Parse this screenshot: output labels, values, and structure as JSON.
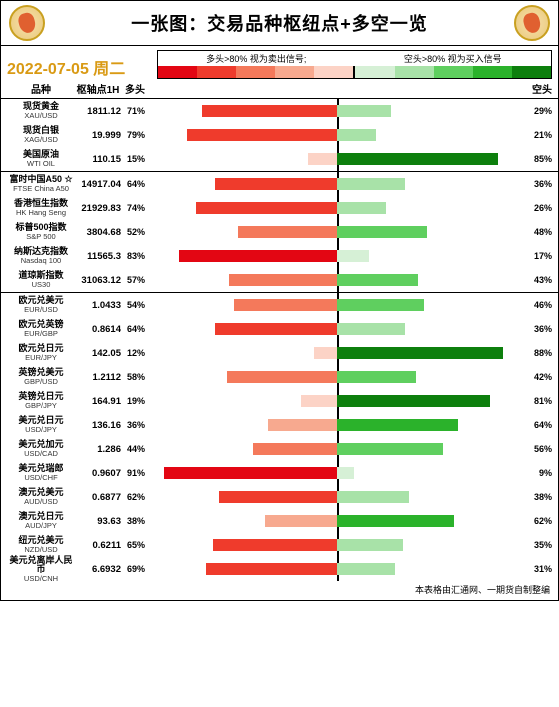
{
  "title": "一张图：交易品种枢纽点+多空一览",
  "date": "2022-07-05 周二",
  "legend": {
    "leftCaption": "多头>80% 视为卖出信号;",
    "rightCaption": "空头>80% 视为买入信号",
    "leftColors": [
      "#e30613",
      "#ef3b2c",
      "#f4795b",
      "#f7a98f",
      "#fcd3c6"
    ],
    "rightColors": [
      "#d6f0d6",
      "#a8e2a8",
      "#5fcf5f",
      "#2bb22b",
      "#0d7f0d"
    ]
  },
  "columns": {
    "name": "品种",
    "pivot": "枢轴点1H",
    "long": "多头",
    "short": "空头"
  },
  "redScale": [
    "#fcd3c6",
    "#f7a98f",
    "#f4795b",
    "#ef3b2c",
    "#e30613"
  ],
  "greenScale": [
    "#d6f0d6",
    "#a8e2a8",
    "#5fcf5f",
    "#2bb22b",
    "#0d7f0d"
  ],
  "sections": [
    {
      "rows": [
        {
          "cn": "现货黄金",
          "en": "XAU/USD",
          "pivot": "1811.12",
          "long": 71,
          "short": 29
        },
        {
          "cn": "现货白银",
          "en": "XAG/USD",
          "pivot": "19.999",
          "long": 79,
          "short": 21
        },
        {
          "cn": "美国原油",
          "en": "WTI OIL",
          "pivot": "110.15",
          "long": 15,
          "short": 85
        }
      ]
    },
    {
      "rows": [
        {
          "cn": "富时中国A50 ☆",
          "en": "FTSE China A50",
          "pivot": "14917.04",
          "long": 64,
          "short": 36
        },
        {
          "cn": "香港恒生指数",
          "en": "HK Hang Seng",
          "pivot": "21929.83",
          "long": 74,
          "short": 26
        },
        {
          "cn": "标普500指数",
          "en": "S&P 500",
          "pivot": "3804.68",
          "long": 52,
          "short": 48
        },
        {
          "cn": "纳斯达克指数",
          "en": "Nasdaq 100",
          "pivot": "11565.3",
          "long": 83,
          "short": 17
        },
        {
          "cn": "道琼斯指数",
          "en": "US30",
          "pivot": "31063.12",
          "long": 57,
          "short": 43
        }
      ]
    },
    {
      "rows": [
        {
          "cn": "欧元兑美元",
          "en": "EUR/USD",
          "pivot": "1.0433",
          "long": 54,
          "short": 46
        },
        {
          "cn": "欧元兑英镑",
          "en": "EUR/GBP",
          "pivot": "0.8614",
          "long": 64,
          "short": 36
        },
        {
          "cn": "欧元兑日元",
          "en": "EUR/JPY",
          "pivot": "142.05",
          "long": 12,
          "short": 88
        },
        {
          "cn": "英镑兑美元",
          "en": "GBP/USD",
          "pivot": "1.2112",
          "long": 58,
          "short": 42
        },
        {
          "cn": "英镑兑日元",
          "en": "GBP/JPY",
          "pivot": "164.91",
          "long": 19,
          "short": 81
        },
        {
          "cn": "美元兑日元",
          "en": "USD/JPY",
          "pivot": "136.16",
          "long": 36,
          "short": 64
        },
        {
          "cn": "美元兑加元",
          "en": "USD/CAD",
          "pivot": "1.286",
          "long": 44,
          "short": 56
        },
        {
          "cn": "美元兑瑞郎",
          "en": "USD/CHF",
          "pivot": "0.9607",
          "long": 91,
          "short": 9
        },
        {
          "cn": "澳元兑美元",
          "en": "AUD/USD",
          "pivot": "0.6877",
          "long": 62,
          "short": 38
        },
        {
          "cn": "澳元兑日元",
          "en": "AUD/JPY",
          "pivot": "93.63",
          "long": 38,
          "short": 62
        },
        {
          "cn": "纽元兑美元",
          "en": "NZD/USD",
          "pivot": "0.6211",
          "long": 65,
          "short": 35
        },
        {
          "cn": "美元兑离岸人民币",
          "en": "USD/CNH",
          "pivot": "6.6932",
          "long": 69,
          "short": 31
        }
      ]
    }
  ],
  "footer": "本表格由汇通网、一期货自制整编"
}
